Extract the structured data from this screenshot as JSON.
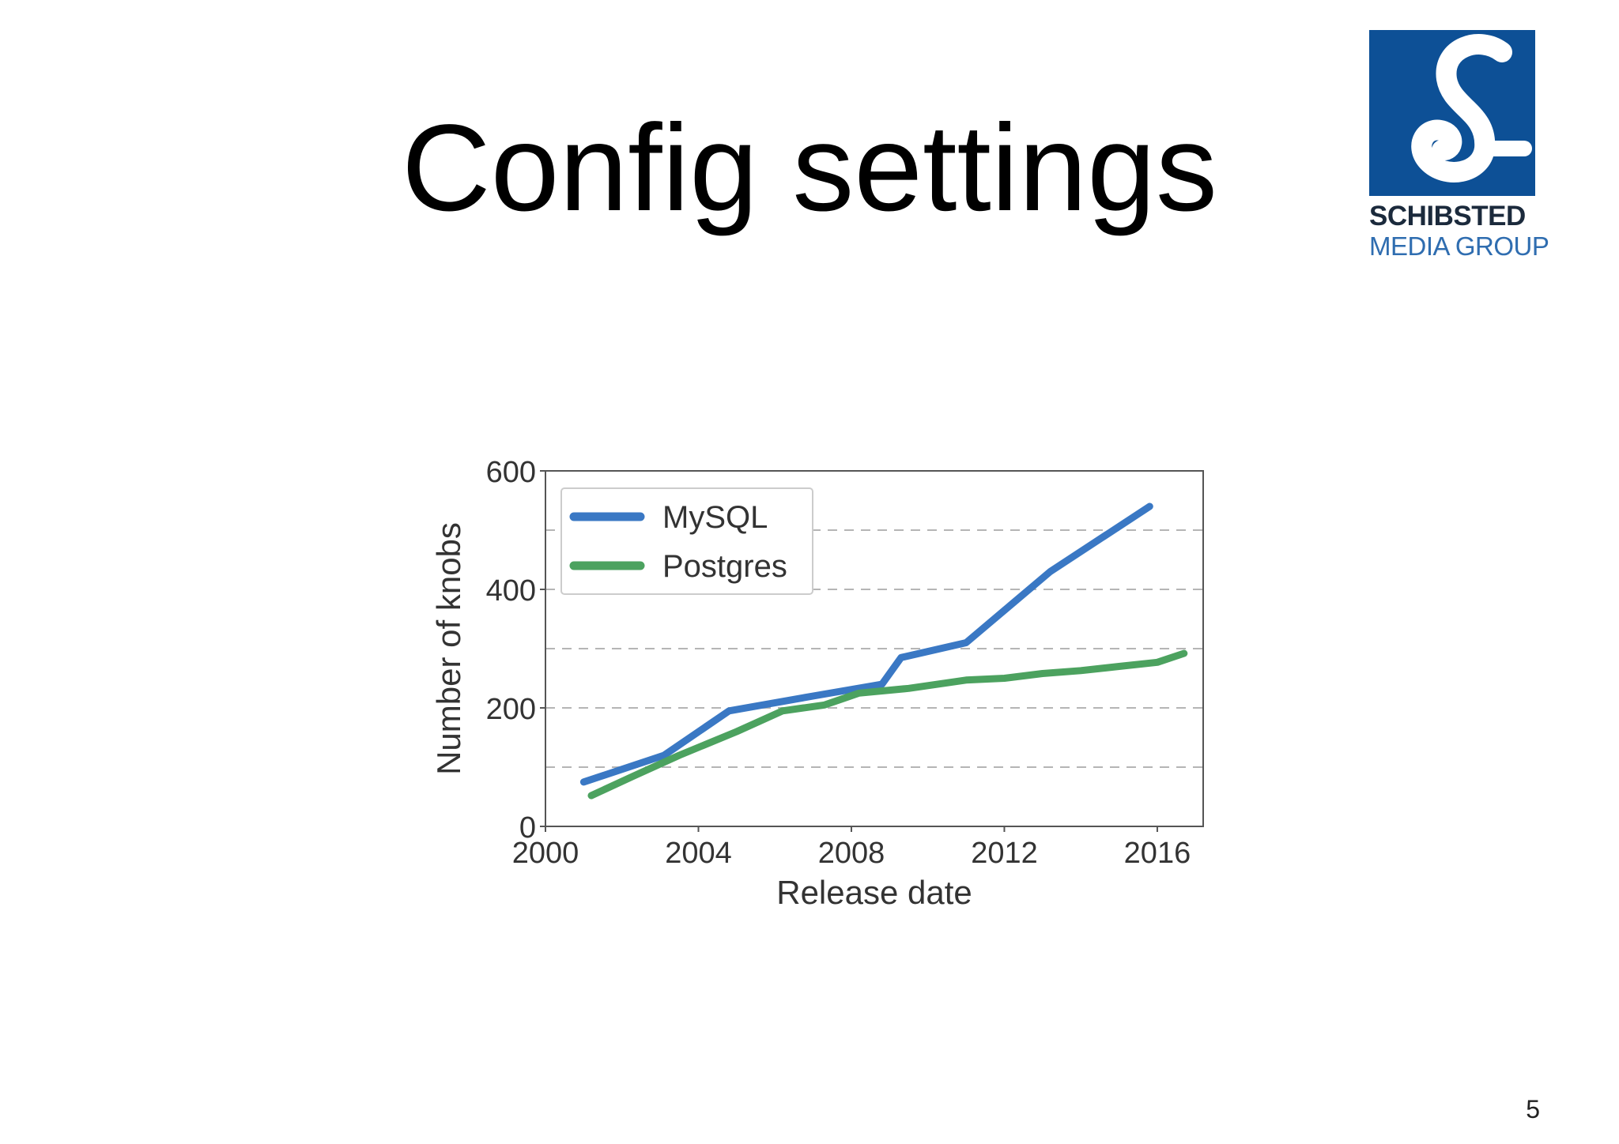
{
  "slide": {
    "title": "Config settings",
    "page_number": "5"
  },
  "logo": {
    "name": "SCHIBSTED",
    "subtitle": "MEDIA GROUP",
    "brand_color": "#0d5096"
  },
  "chart_data": {
    "type": "line",
    "title": "",
    "xlabel": "Release date",
    "ylabel": "Number of knobs",
    "xlim": [
      2000,
      2017.2
    ],
    "ylim": [
      0,
      600
    ],
    "x_ticks": [
      2000,
      2004,
      2008,
      2012,
      2016
    ],
    "y_ticks": [
      0,
      200,
      400,
      600
    ],
    "grid": "horizontal dashed at 100, 200, 300, 400, 500",
    "legend_position": "top-left",
    "series": [
      {
        "name": "MySQL",
        "color": "#3a78c4",
        "x": [
          2001.0,
          2003.1,
          2004.8,
          2007.0,
          2008.8,
          2009.3,
          2011.0,
          2013.2,
          2015.8
        ],
        "y": [
          75,
          120,
          195,
          220,
          240,
          285,
          310,
          430,
          540
        ]
      },
      {
        "name": "Postgres",
        "color": "#4ca25f",
        "x": [
          2001.2,
          2002.3,
          2003.5,
          2005.0,
          2006.2,
          2007.3,
          2008.2,
          2009.5,
          2011.0,
          2012.0,
          2013.0,
          2014.0,
          2015.0,
          2016.0,
          2016.7
        ],
        "y": [
          52,
          85,
          120,
          160,
          195,
          205,
          225,
          233,
          247,
          250,
          258,
          263,
          270,
          277,
          292
        ]
      }
    ]
  }
}
